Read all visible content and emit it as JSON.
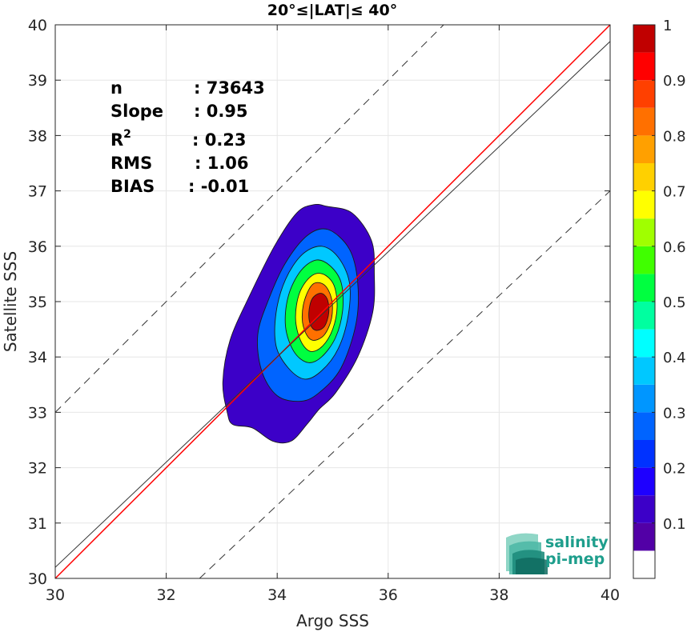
{
  "chart_data": {
    "type": "contour-scatter",
    "title": "20°≤|LAT|≤ 40°",
    "xlabel": "Argo SSS",
    "ylabel": "Satellite SSS",
    "xlim": [
      30,
      40
    ],
    "ylim": [
      30,
      40
    ],
    "xticks": [
      30,
      32,
      34,
      36,
      38,
      40
    ],
    "yticks": [
      30,
      31,
      32,
      33,
      34,
      35,
      36,
      37,
      38,
      39,
      40
    ],
    "grid": true,
    "stats": [
      {
        "label": "n",
        "value": ": 73643"
      },
      {
        "label": "Slope",
        "value": ": 0.95"
      },
      {
        "label": "R",
        "sup": "2",
        "value": ": 0.23"
      },
      {
        "label": "RMS",
        "value": ": 1.06"
      },
      {
        "label": "BIAS",
        "value": ": -0.01"
      }
    ],
    "lines": [
      {
        "name": "one-to-one",
        "color": "#ff0000",
        "style": "solid",
        "points": [
          [
            30,
            30
          ],
          [
            40,
            40
          ]
        ]
      },
      {
        "name": "regression",
        "color": "#333333",
        "style": "solid",
        "points": [
          [
            30,
            30.2
          ],
          [
            40,
            39.7
          ]
        ]
      },
      {
        "name": "upper-bound",
        "color": "#333333",
        "style": "dashed",
        "points": [
          [
            30,
            33
          ],
          [
            37.4,
            40.4
          ]
        ]
      },
      {
        "name": "lower-bound",
        "color": "#333333",
        "style": "dashed",
        "points": [
          [
            32.6,
            30
          ],
          [
            40,
            37
          ]
        ]
      }
    ],
    "density_center": [
      34.8,
      34.85
    ],
    "colorbar": {
      "ticks": [
        0.1,
        0.2,
        0.3,
        0.4,
        0.5,
        0.6,
        0.7,
        0.8,
        0.9,
        1
      ],
      "tick_labels": [
        "0.1",
        "0.2",
        "0.3",
        "0.4",
        "0.5",
        "0.6",
        "0.7",
        "0.8",
        "0.9",
        "1"
      ],
      "levels": [
        0,
        0.05,
        0.1,
        0.15,
        0.2,
        0.25,
        0.3,
        0.35,
        0.4,
        0.45,
        0.5,
        0.55,
        0.6,
        0.65,
        0.7,
        0.75,
        0.8,
        0.85,
        0.9,
        0.95,
        1
      ],
      "colors": [
        "#ffffff",
        "#5200a6",
        "#3c00c8",
        "#1e00ff",
        "#0032ff",
        "#0064ff",
        "#0096ff",
        "#00c8ff",
        "#00ffff",
        "#00ffa0",
        "#00ff40",
        "#40ff00",
        "#a0ff00",
        "#ffff00",
        "#ffd000",
        "#ffa000",
        "#ff7000",
        "#ff4000",
        "#ff0000",
        "#c00000",
        "#800000"
      ]
    },
    "contours": [
      {
        "level": 0.05,
        "color": "#3c00c8",
        "points": [
          [
            33.92,
            32.48
          ],
          [
            34.25,
            32.48
          ],
          [
            34.55,
            32.8
          ],
          [
            34.75,
            33.05
          ],
          [
            35.05,
            33.35
          ],
          [
            35.45,
            34.0
          ],
          [
            35.72,
            34.8
          ],
          [
            35.75,
            35.5
          ],
          [
            35.7,
            36.1
          ],
          [
            35.35,
            36.6
          ],
          [
            34.9,
            36.72
          ],
          [
            34.65,
            36.75
          ],
          [
            34.35,
            36.6
          ],
          [
            33.95,
            36.0
          ],
          [
            33.5,
            35.1
          ],
          [
            33.15,
            34.3
          ],
          [
            33.02,
            33.55
          ],
          [
            33.1,
            33.0
          ],
          [
            33.2,
            32.78
          ],
          [
            33.55,
            32.72
          ]
        ]
      },
      {
        "level": 0.2,
        "color": "#0064ff",
        "points": [
          [
            34.42,
            33.2
          ],
          [
            34.75,
            33.35
          ],
          [
            35.15,
            33.8
          ],
          [
            35.42,
            34.6
          ],
          [
            35.45,
            35.35
          ],
          [
            35.3,
            35.95
          ],
          [
            34.92,
            36.3
          ],
          [
            34.55,
            36.2
          ],
          [
            34.15,
            35.7
          ],
          [
            33.85,
            35.05
          ],
          [
            33.65,
            34.4
          ],
          [
            33.72,
            33.75
          ],
          [
            34.0,
            33.3
          ]
        ]
      },
      {
        "level": 0.3,
        "color": "#00c8ff",
        "points": [
          [
            34.5,
            33.6
          ],
          [
            34.8,
            33.75
          ],
          [
            35.1,
            34.15
          ],
          [
            35.28,
            34.75
          ],
          [
            35.3,
            35.35
          ],
          [
            35.1,
            35.8
          ],
          [
            34.8,
            36.0
          ],
          [
            34.45,
            35.85
          ],
          [
            34.15,
            35.4
          ],
          [
            33.98,
            34.8
          ],
          [
            33.98,
            34.2
          ],
          [
            34.2,
            33.8
          ]
        ]
      },
      {
        "level": 0.45,
        "color": "#00ff40",
        "points": [
          [
            34.55,
            33.9
          ],
          [
            34.8,
            34.0
          ],
          [
            35.05,
            34.35
          ],
          [
            35.18,
            34.85
          ],
          [
            35.15,
            35.35
          ],
          [
            34.95,
            35.65
          ],
          [
            34.7,
            35.75
          ],
          [
            34.42,
            35.55
          ],
          [
            34.2,
            35.1
          ],
          [
            34.15,
            34.55
          ],
          [
            34.3,
            34.1
          ]
        ]
      },
      {
        "level": 0.6,
        "color": "#ffff00",
        "points": [
          [
            34.6,
            34.1
          ],
          [
            34.82,
            34.2
          ],
          [
            35.0,
            34.5
          ],
          [
            35.08,
            34.9
          ],
          [
            35.02,
            35.3
          ],
          [
            34.82,
            35.5
          ],
          [
            34.6,
            35.45
          ],
          [
            34.4,
            35.15
          ],
          [
            34.33,
            34.7
          ],
          [
            34.42,
            34.3
          ]
        ]
      },
      {
        "level": 0.75,
        "color": "#ff7000",
        "points": [
          [
            34.65,
            34.3
          ],
          [
            34.85,
            34.4
          ],
          [
            34.98,
            34.7
          ],
          [
            34.98,
            35.05
          ],
          [
            34.85,
            35.3
          ],
          [
            34.65,
            35.32
          ],
          [
            34.5,
            35.05
          ],
          [
            34.45,
            34.7
          ],
          [
            34.52,
            34.42
          ]
        ]
      },
      {
        "level": 0.9,
        "color": "#c00000",
        "points": [
          [
            34.7,
            34.48
          ],
          [
            34.85,
            34.55
          ],
          [
            34.93,
            34.8
          ],
          [
            34.9,
            35.05
          ],
          [
            34.78,
            35.15
          ],
          [
            34.63,
            35.05
          ],
          [
            34.57,
            34.8
          ],
          [
            34.6,
            34.58
          ]
        ]
      }
    ]
  },
  "logo": {
    "line1": "salinity",
    "line2": "pi-mep"
  }
}
